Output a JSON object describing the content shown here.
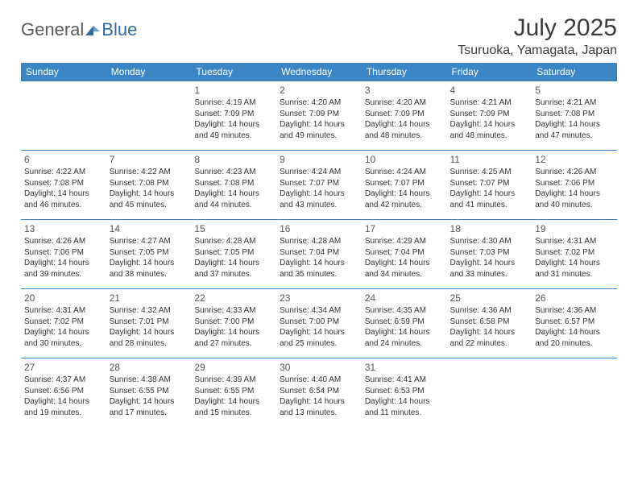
{
  "brand": {
    "part1": "General",
    "part2": "Blue"
  },
  "title": "July 2025",
  "location": "Tsuruoka, Yamagata, Japan",
  "colors": {
    "header_bg": "#3b85c5",
    "header_text": "#ffffff",
    "cell_border": "#3b85c5",
    "body_text": "#333333",
    "title_text": "#3a3a3a",
    "logo_gray": "#5a5a5a",
    "logo_blue": "#2f6aa8",
    "page_bg": "#ffffff"
  },
  "typography": {
    "title_fontsize": 30,
    "location_fontsize": 16,
    "dayhead_fontsize": 12,
    "daynum_fontsize": 12,
    "cell_fontsize": 10
  },
  "day_headers": [
    "Sunday",
    "Monday",
    "Tuesday",
    "Wednesday",
    "Thursday",
    "Friday",
    "Saturday"
  ],
  "labels": {
    "sunrise": "Sunrise:",
    "sunset": "Sunset:",
    "daylight": "Daylight:"
  },
  "weeks": [
    [
      null,
      null,
      {
        "n": "1",
        "sr": "4:19 AM",
        "ss": "7:09 PM",
        "dl": "14 hours and 49 minutes."
      },
      {
        "n": "2",
        "sr": "4:20 AM",
        "ss": "7:09 PM",
        "dl": "14 hours and 49 minutes."
      },
      {
        "n": "3",
        "sr": "4:20 AM",
        "ss": "7:09 PM",
        "dl": "14 hours and 48 minutes."
      },
      {
        "n": "4",
        "sr": "4:21 AM",
        "ss": "7:09 PM",
        "dl": "14 hours and 48 minutes."
      },
      {
        "n": "5",
        "sr": "4:21 AM",
        "ss": "7:08 PM",
        "dl": "14 hours and 47 minutes."
      }
    ],
    [
      {
        "n": "6",
        "sr": "4:22 AM",
        "ss": "7:08 PM",
        "dl": "14 hours and 46 minutes."
      },
      {
        "n": "7",
        "sr": "4:22 AM",
        "ss": "7:08 PM",
        "dl": "14 hours and 45 minutes."
      },
      {
        "n": "8",
        "sr": "4:23 AM",
        "ss": "7:08 PM",
        "dl": "14 hours and 44 minutes."
      },
      {
        "n": "9",
        "sr": "4:24 AM",
        "ss": "7:07 PM",
        "dl": "14 hours and 43 minutes."
      },
      {
        "n": "10",
        "sr": "4:24 AM",
        "ss": "7:07 PM",
        "dl": "14 hours and 42 minutes."
      },
      {
        "n": "11",
        "sr": "4:25 AM",
        "ss": "7:07 PM",
        "dl": "14 hours and 41 minutes."
      },
      {
        "n": "12",
        "sr": "4:26 AM",
        "ss": "7:06 PM",
        "dl": "14 hours and 40 minutes."
      }
    ],
    [
      {
        "n": "13",
        "sr": "4:26 AM",
        "ss": "7:06 PM",
        "dl": "14 hours and 39 minutes."
      },
      {
        "n": "14",
        "sr": "4:27 AM",
        "ss": "7:05 PM",
        "dl": "14 hours and 38 minutes."
      },
      {
        "n": "15",
        "sr": "4:28 AM",
        "ss": "7:05 PM",
        "dl": "14 hours and 37 minutes."
      },
      {
        "n": "16",
        "sr": "4:28 AM",
        "ss": "7:04 PM",
        "dl": "14 hours and 35 minutes."
      },
      {
        "n": "17",
        "sr": "4:29 AM",
        "ss": "7:04 PM",
        "dl": "14 hours and 34 minutes."
      },
      {
        "n": "18",
        "sr": "4:30 AM",
        "ss": "7:03 PM",
        "dl": "14 hours and 33 minutes."
      },
      {
        "n": "19",
        "sr": "4:31 AM",
        "ss": "7:02 PM",
        "dl": "14 hours and 31 minutes."
      }
    ],
    [
      {
        "n": "20",
        "sr": "4:31 AM",
        "ss": "7:02 PM",
        "dl": "14 hours and 30 minutes."
      },
      {
        "n": "21",
        "sr": "4:32 AM",
        "ss": "7:01 PM",
        "dl": "14 hours and 28 minutes."
      },
      {
        "n": "22",
        "sr": "4:33 AM",
        "ss": "7:00 PM",
        "dl": "14 hours and 27 minutes."
      },
      {
        "n": "23",
        "sr": "4:34 AM",
        "ss": "7:00 PM",
        "dl": "14 hours and 25 minutes."
      },
      {
        "n": "24",
        "sr": "4:35 AM",
        "ss": "6:59 PM",
        "dl": "14 hours and 24 minutes."
      },
      {
        "n": "25",
        "sr": "4:36 AM",
        "ss": "6:58 PM",
        "dl": "14 hours and 22 minutes."
      },
      {
        "n": "26",
        "sr": "4:36 AM",
        "ss": "6:57 PM",
        "dl": "14 hours and 20 minutes."
      }
    ],
    [
      {
        "n": "27",
        "sr": "4:37 AM",
        "ss": "6:56 PM",
        "dl": "14 hours and 19 minutes."
      },
      {
        "n": "28",
        "sr": "4:38 AM",
        "ss": "6:55 PM",
        "dl": "14 hours and 17 minutes."
      },
      {
        "n": "29",
        "sr": "4:39 AM",
        "ss": "6:55 PM",
        "dl": "14 hours and 15 minutes."
      },
      {
        "n": "30",
        "sr": "4:40 AM",
        "ss": "6:54 PM",
        "dl": "14 hours and 13 minutes."
      },
      {
        "n": "31",
        "sr": "4:41 AM",
        "ss": "6:53 PM",
        "dl": "14 hours and 11 minutes."
      },
      null,
      null
    ]
  ]
}
